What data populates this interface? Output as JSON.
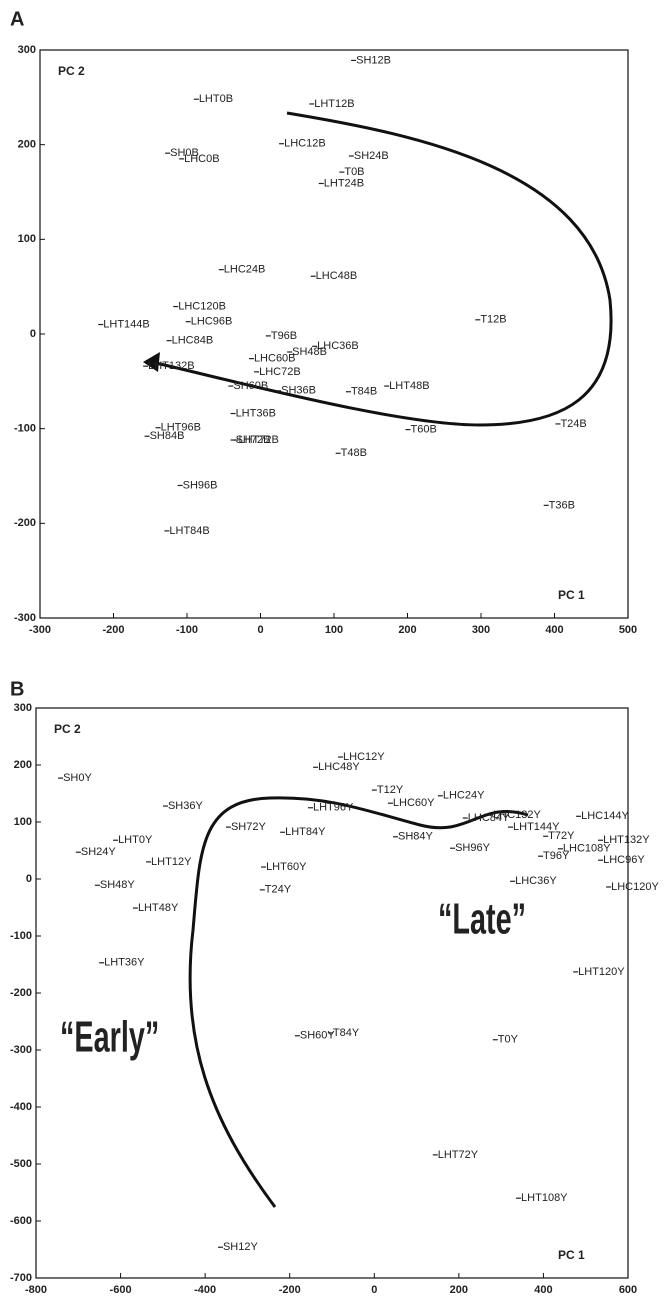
{
  "chart_data": [
    {
      "type": "scatter",
      "panel": "A",
      "xlabel": "PC 1",
      "ylabel": "PC 2",
      "xlim": [
        -300,
        500
      ],
      "xticks": [
        -300,
        -200,
        -100,
        0,
        100,
        200,
        300,
        400,
        500
      ],
      "ylim": [
        -300,
        300
      ],
      "yticks": [
        -300,
        -200,
        -100,
        0,
        100,
        200,
        300
      ],
      "labels": [
        "SH12B",
        "LHT0B",
        "LHT12B",
        "LHC12B",
        "SH0B",
        "LHC0B",
        "SH24B",
        "T0B",
        "LHT24B",
        "LHC24B",
        "LHC48B",
        "LHC120B",
        "LHT144B",
        "LHC96B",
        "T12B",
        "LHC84B",
        "T96B",
        "LHC36B",
        "SH48B",
        "LHC60B",
        "LHC72B",
        "LHT132B",
        "SH60B",
        "SH36B",
        "T84B",
        "LHT48B",
        "LHT36B",
        "LHT96B",
        "SH84B",
        "SH72B",
        "LHT72B",
        "T60B",
        "T24B",
        "T48B",
        "SH96B",
        "T36B",
        "LHT84B"
      ],
      "x": [
        126,
        -88,
        69,
        28,
        -127,
        -108,
        123,
        110,
        82,
        -54,
        71,
        -116,
        -218,
        -99,
        295,
        -125,
        10,
        73,
        39,
        -13,
        -6,
        -157,
        -41,
        24,
        119,
        171,
        -38,
        -140,
        -155,
        -38,
        -34,
        200,
        404,
        105,
        -110,
        388,
        -128
      ],
      "y": [
        289,
        248,
        243,
        201,
        191,
        185,
        188,
        171,
        159,
        68,
        61,
        29,
        10,
        13,
        15,
        -7,
        -2,
        -13,
        -19,
        -26,
        -40,
        -34,
        -55,
        -60,
        -61,
        -55,
        -84,
        -99,
        -108,
        -112,
        -112,
        -101,
        -95,
        -126,
        -160,
        -181,
        -208
      ]
    },
    {
      "type": "scatter",
      "panel": "B",
      "xlabel": "PC 1",
      "ylabel": "PC 2",
      "xlim": [
        -800,
        600
      ],
      "xticks": [
        -800,
        -600,
        -400,
        -200,
        0,
        200,
        400,
        600
      ],
      "ylim": [
        -700,
        300
      ],
      "yticks": [
        -700,
        -600,
        -500,
        -400,
        -300,
        -200,
        -100,
        0,
        100,
        200,
        300
      ],
      "annotations": [
        "“Early”",
        "“Late”"
      ],
      "labels": [
        "SH0Y",
        "LHC12Y",
        "LHC48Y",
        "T12Y",
        "LHC60Y",
        "LHC24Y",
        "SH36Y",
        "LHT96Y",
        "LHC84Y",
        "LHC132Y",
        "LHC144Y",
        "LHT144Y",
        "T72Y",
        "LHC108Y",
        "LHC96Y",
        "LHT132Y",
        "T96Y",
        "LHT84Y",
        "SH72Y",
        "SH84Y",
        "SH96Y",
        "LHT0Y",
        "SH24Y",
        "LHT12Y",
        "LHT60Y",
        "T24Y",
        "SH48Y",
        "LHC36Y",
        "LHC120Y",
        "LHT48Y",
        "LHT36Y",
        "LHT120Y",
        "SH60Y",
        "T84Y",
        "T0Y",
        "LHT72Y",
        "LHT108Y",
        "SH12Y"
      ],
      "x": [
        -743,
        -81,
        -140,
        -1,
        37,
        155,
        -495,
        -152,
        214,
        274,
        482,
        321,
        404,
        439,
        534,
        534,
        392,
        -218,
        -346,
        49,
        184,
        -613,
        -701,
        -535,
        -263,
        -266,
        -656,
        326,
        553,
        -566,
        -646,
        475,
        -183,
        -105,
        285,
        143,
        340,
        -365
      ],
      "y": [
        177,
        214,
        196,
        156,
        133,
        146,
        128,
        125,
        107,
        112,
        110,
        91,
        75,
        53,
        33,
        68,
        40,
        82,
        91,
        74,
        54,
        68,
        47,
        30,
        21,
        -19,
        -11,
        -4,
        -14,
        -51,
        -147,
        -163,
        -275,
        -270,
        -282,
        -484,
        -560,
        -646
      ]
    }
  ]
}
